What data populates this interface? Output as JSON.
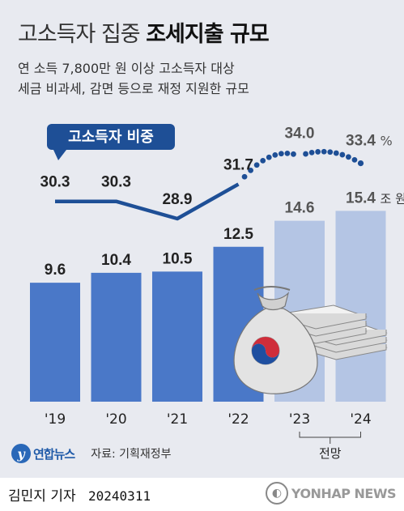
{
  "header": {
    "title_light": "고소득자 집중",
    "title_bold": "조세지출 규모",
    "subtitle_line1": "연 소득 7,800만 원 이상 고소득자 대상",
    "subtitle_line2": "세금 비과세, 감면 등으로 재정 지원한 규모"
  },
  "chart_data": {
    "type": "bar",
    "categories": [
      "'19",
      "'20",
      "'21",
      "'22",
      "'23",
      "'24"
    ],
    "bar_labels": [
      "9.6",
      "10.4",
      "10.5",
      "12.5",
      "14.6",
      "15.4"
    ],
    "values": [
      9.6,
      10.4,
      10.5,
      12.5,
      14.6,
      15.4
    ],
    "bar_unit": "조 원",
    "line_series": {
      "name": "고소득자 비중",
      "values": [
        30.3,
        30.3,
        28.9,
        31.7,
        34.0,
        33.4
      ],
      "labels": [
        "30.3",
        "30.3",
        "28.9",
        "31.7",
        "34.0",
        "33.4"
      ],
      "unit": "%",
      "projected_from_index": 3
    },
    "forecast_label": "전망",
    "forecast_categories": [
      "'23",
      "'24"
    ],
    "colors": {
      "bar_actual": "#4a78c8",
      "bar_forecast": "#b4c5e4",
      "line": "#1e4f96",
      "label_actual": "#222222",
      "label_forecast": "#555555"
    }
  },
  "source": {
    "logo_text": "연합뉴스",
    "label": "자료: 기획재정부"
  },
  "footer": {
    "author": "김민지 기자",
    "date": "20240311",
    "brand": "YONHAP NEWS"
  }
}
